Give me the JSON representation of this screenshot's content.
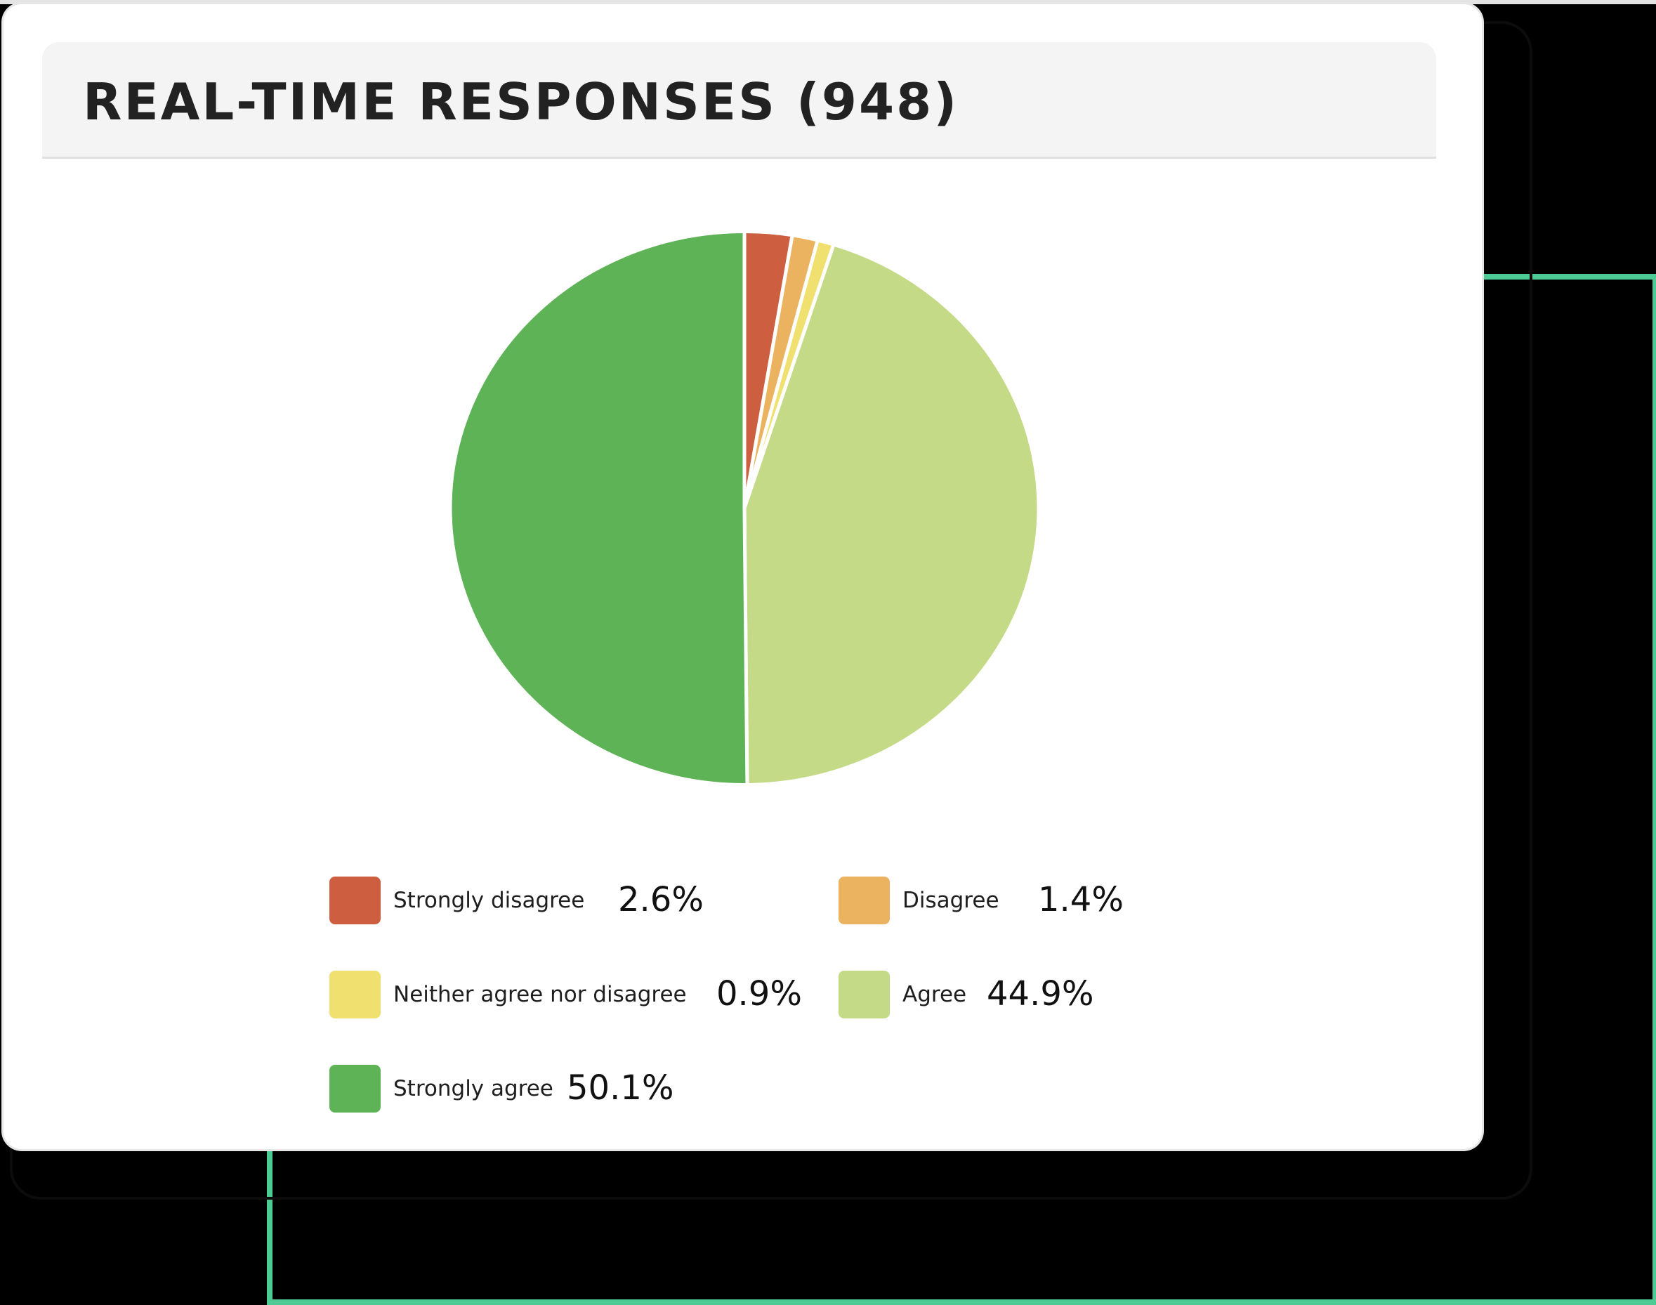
{
  "title": "REAL-TIME RESPONSES (948)",
  "colors": {
    "frame_accent": "#4ecb94",
    "header_bg": "#f4f4f4",
    "card_bg": "#ffffff"
  },
  "legend": [
    {
      "label": "Strongly disagree",
      "value": "2.6%",
      "color": "#cd5f40"
    },
    {
      "label": "Disagree",
      "value": "1.4%",
      "color": "#ebb35f"
    },
    {
      "label": "Neither agree nor disagree",
      "value": "0.9%",
      "color": "#f0e070"
    },
    {
      "label": "Agree",
      "value": "44.9%",
      "color": "#c5da87"
    },
    {
      "label": "Strongly agree",
      "value": "50.1%",
      "color": "#5db356"
    }
  ],
  "chart_data": {
    "type": "pie",
    "title": "REAL-TIME RESPONSES (948)",
    "total_responses": 948,
    "categories": [
      "Strongly disagree",
      "Disagree",
      "Neither agree nor disagree",
      "Agree",
      "Strongly agree"
    ],
    "values": [
      2.6,
      1.4,
      0.9,
      44.9,
      50.1
    ],
    "colors": [
      "#cd5f40",
      "#ebb35f",
      "#f0e070",
      "#c5da87",
      "#5db356"
    ],
    "unit": "%",
    "start_angle": "12 o'clock, clockwise",
    "legend_position": "bottom"
  }
}
